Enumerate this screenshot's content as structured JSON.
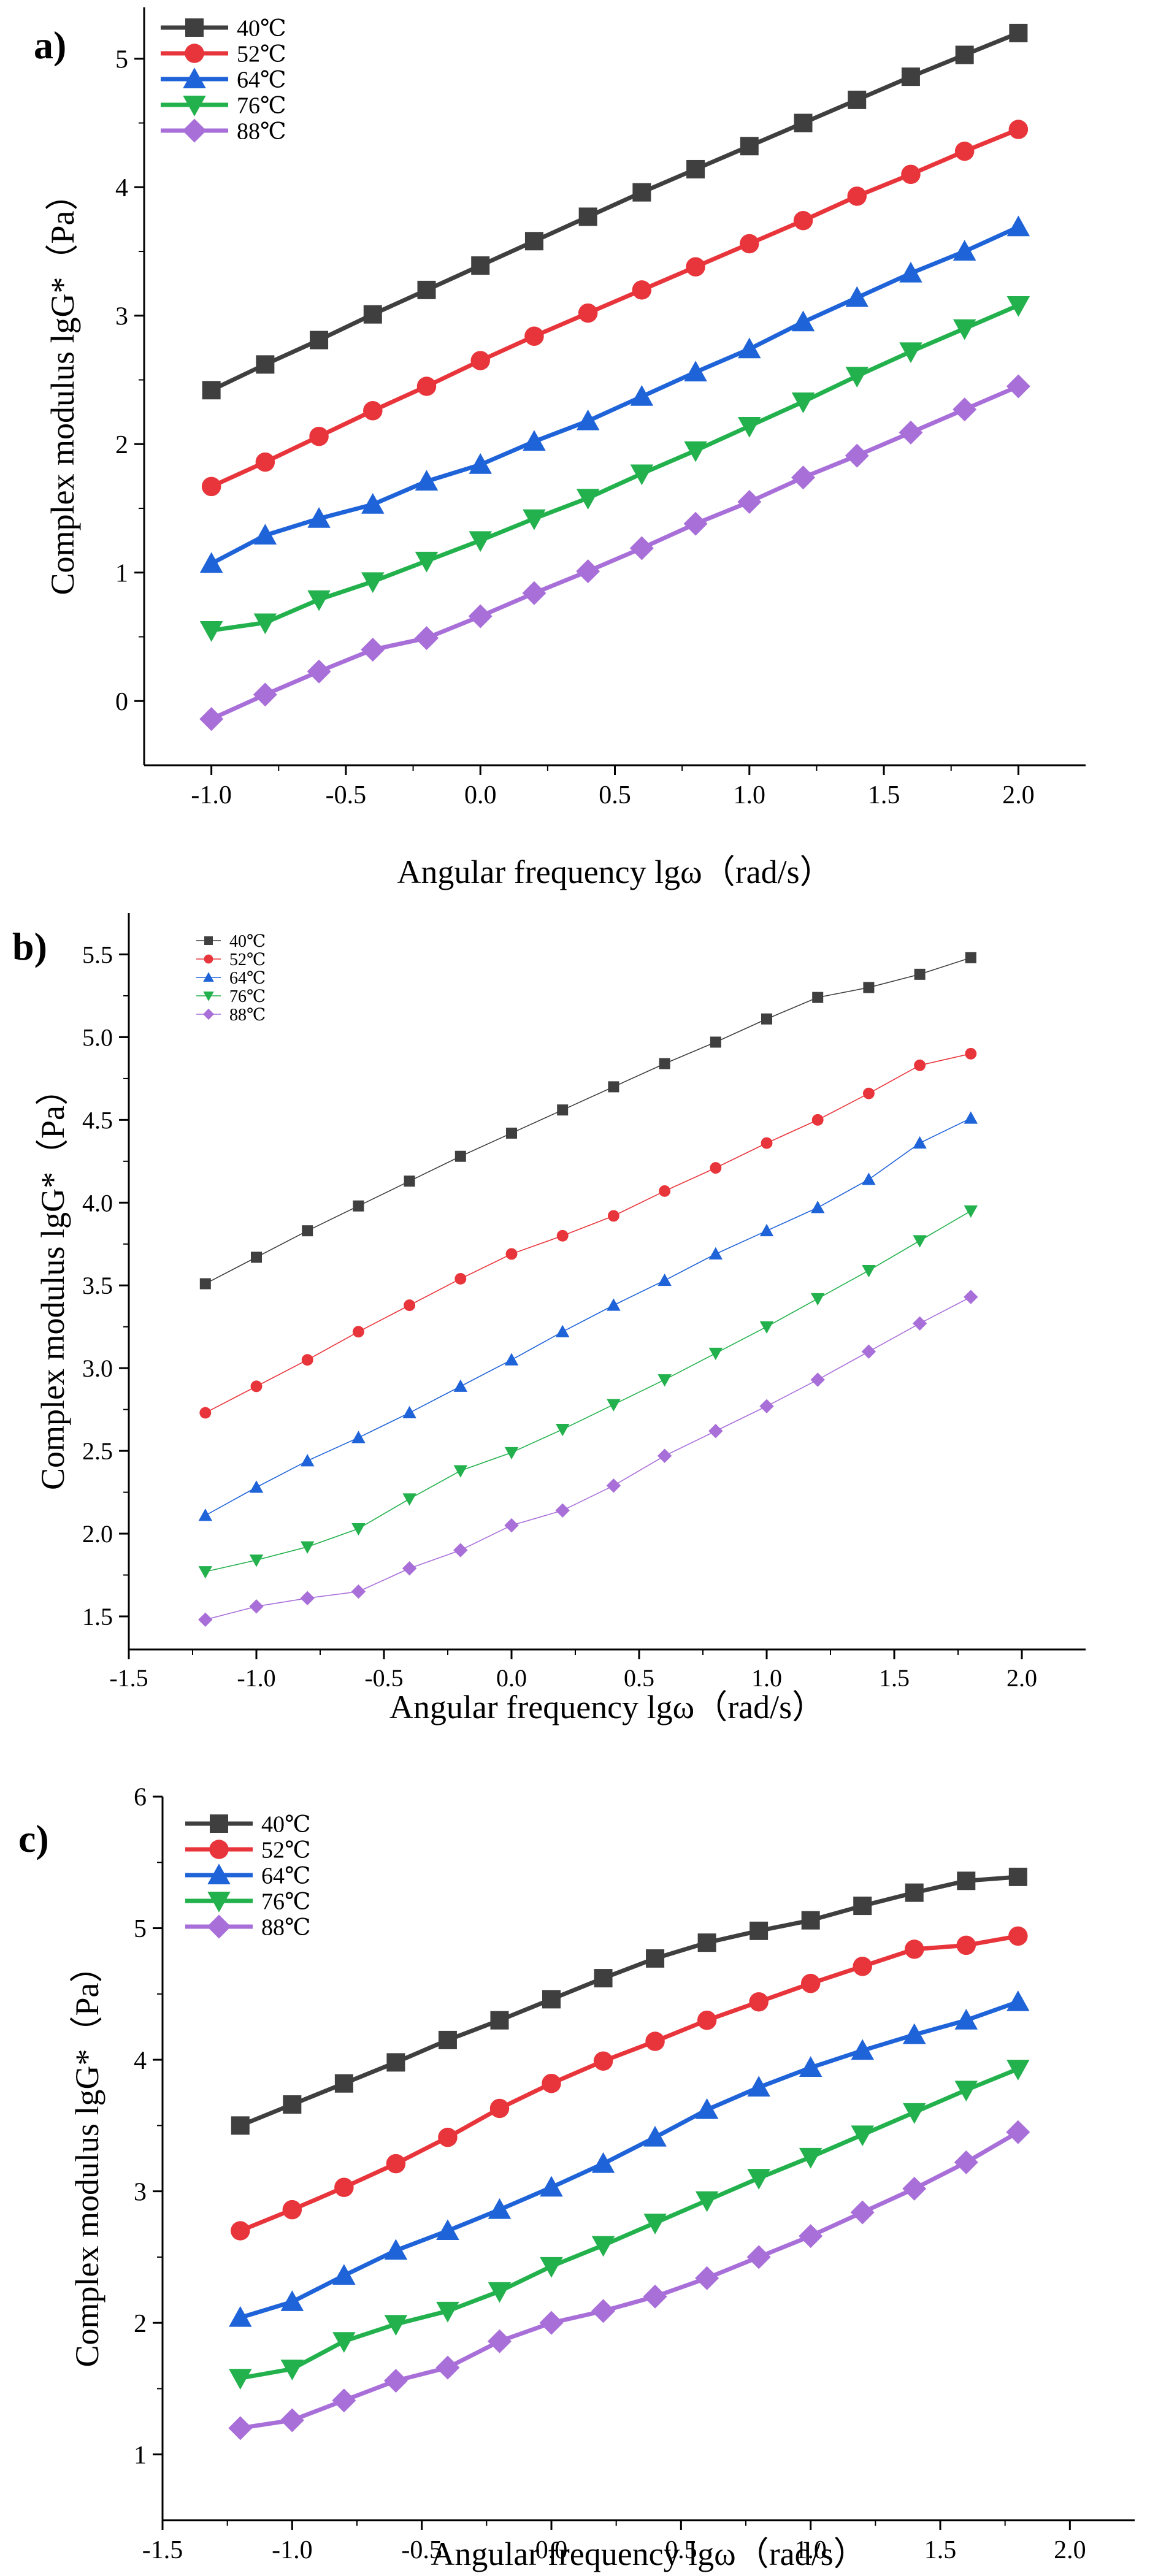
{
  "chart_data": [
    {
      "panel_label": "a)",
      "type": "line",
      "xlabel": "Angular frequency lgω（rad/s）",
      "ylabel": "Complex modulus lgG*（Pa）",
      "xlim": [
        -1.25,
        2.25
      ],
      "ylim": [
        -0.5,
        5.4
      ],
      "xticks": [
        -1.0,
        -0.5,
        0.0,
        0.5,
        1.0,
        1.5,
        2.0
      ],
      "xtick_labels": [
        "-1.0",
        "-0.5",
        "0.0",
        "0.5",
        "1.0",
        "1.5",
        "2.0"
      ],
      "yticks": [
        0,
        1,
        2,
        3,
        4,
        5
      ],
      "ytick_labels": [
        "0",
        "1",
        "2",
        "3",
        "4",
        "5"
      ],
      "legend_position": "top-left",
      "x": [
        -1.0,
        -0.8,
        -0.6,
        -0.4,
        -0.2,
        0.0,
        0.2,
        0.4,
        0.6,
        0.8,
        1.0,
        1.2,
        1.4,
        1.6,
        1.8,
        2.0
      ],
      "series": [
        {
          "name": "40℃",
          "color": "#3f3f3f",
          "marker": "square",
          "values": [
            2.42,
            2.62,
            2.81,
            3.01,
            3.2,
            3.39,
            3.58,
            3.77,
            3.96,
            4.14,
            4.32,
            4.5,
            4.68,
            4.86,
            5.03,
            5.2
          ]
        },
        {
          "name": "52℃",
          "color": "#e8353b",
          "marker": "circle",
          "values": [
            1.67,
            1.86,
            2.06,
            2.26,
            2.45,
            2.65,
            2.84,
            3.02,
            3.2,
            3.38,
            3.56,
            3.74,
            3.93,
            4.1,
            4.28,
            4.45
          ]
        },
        {
          "name": "64℃",
          "color": "#1f63d8",
          "marker": "triangle-up",
          "values": [
            1.07,
            1.29,
            1.42,
            1.53,
            1.71,
            1.84,
            2.02,
            2.18,
            2.37,
            2.56,
            2.74,
            2.95,
            3.14,
            3.33,
            3.5,
            3.69
          ]
        },
        {
          "name": "76℃",
          "color": "#22b14c",
          "marker": "triangle-down",
          "values": [
            0.55,
            0.61,
            0.79,
            0.93,
            1.09,
            1.25,
            1.42,
            1.58,
            1.77,
            1.95,
            2.14,
            2.33,
            2.53,
            2.72,
            2.9,
            3.08
          ]
        },
        {
          "name": "88℃",
          "color": "#a96fd9",
          "marker": "diamond",
          "values": [
            -0.14,
            0.05,
            0.23,
            0.4,
            0.49,
            0.66,
            0.84,
            1.01,
            1.19,
            1.38,
            1.55,
            1.74,
            1.91,
            2.09,
            2.27,
            2.45
          ]
        }
      ]
    },
    {
      "panel_label": "b)",
      "type": "line",
      "xlabel": "Angular frequency lgω（rad/s）",
      "ylabel": "Complex modulus lgG*（Pa）",
      "xlim": [
        -1.5,
        2.25
      ],
      "ylim": [
        1.3,
        5.75
      ],
      "xticks": [
        -1.5,
        -1.0,
        -0.5,
        0.0,
        0.5,
        1.0,
        1.5,
        2.0
      ],
      "xtick_labels": [
        "-1.5",
        "-1.0",
        "-0.5",
        "0.0",
        "0.5",
        "1.0",
        "1.5",
        "2.0"
      ],
      "yticks": [
        1.5,
        2.0,
        2.5,
        3.0,
        3.5,
        4.0,
        4.5,
        5.0,
        5.5
      ],
      "ytick_labels": [
        "1.5",
        "2.0",
        "2.5",
        "3.0",
        "3.5",
        "4.0",
        "4.5",
        "5.0",
        "5.5"
      ],
      "legend_position": "top-left",
      "x": [
        -1.2,
        -1.0,
        -0.8,
        -0.6,
        -0.4,
        -0.2,
        0.0,
        0.2,
        0.4,
        0.6,
        0.8,
        1.0,
        1.2,
        1.4,
        1.6,
        1.8
      ],
      "series": [
        {
          "name": "40℃",
          "color": "#3f3f3f",
          "marker": "square",
          "values": [
            3.51,
            3.67,
            3.83,
            3.98,
            4.13,
            4.28,
            4.42,
            4.56,
            4.7,
            4.84,
            4.97,
            5.11,
            5.24,
            5.3,
            5.38,
            5.48
          ]
        },
        {
          "name": "52℃",
          "color": "#e8353b",
          "marker": "circle",
          "values": [
            2.73,
            2.89,
            3.05,
            3.22,
            3.38,
            3.54,
            3.69,
            3.8,
            3.92,
            4.07,
            4.21,
            4.36,
            4.5,
            4.66,
            4.83,
            4.9
          ]
        },
        {
          "name": "64℃",
          "color": "#1f63d8",
          "marker": "triangle-up",
          "values": [
            2.11,
            2.28,
            2.44,
            2.58,
            2.73,
            2.89,
            3.05,
            3.22,
            3.38,
            3.53,
            3.69,
            3.83,
            3.97,
            4.14,
            4.36,
            4.51
          ]
        },
        {
          "name": "76℃",
          "color": "#22b14c",
          "marker": "triangle-down",
          "values": [
            1.77,
            1.84,
            1.92,
            2.03,
            2.21,
            2.38,
            2.49,
            2.63,
            2.78,
            2.93,
            3.09,
            3.25,
            3.42,
            3.59,
            3.77,
            3.95
          ]
        },
        {
          "name": "88℃",
          "color": "#a96fd9",
          "marker": "diamond",
          "values": [
            1.48,
            1.56,
            1.61,
            1.65,
            1.79,
            1.9,
            2.05,
            2.14,
            2.29,
            2.47,
            2.62,
            2.77,
            2.93,
            3.1,
            3.27,
            3.43
          ]
        }
      ]
    },
    {
      "panel_label": "c)",
      "type": "line",
      "xlabel": "Angular frequency lgω（rad/s）",
      "ylabel": "Complex modulus lgG*（Pa）",
      "xlim": [
        -1.5,
        2.25
      ],
      "ylim": [
        0.5,
        6
      ],
      "xticks": [
        -1.5,
        -1.0,
        -0.5,
        0.0,
        0.5,
        1.0,
        1.5,
        2.0
      ],
      "xtick_labels": [
        "-1.5",
        "-1.0",
        "-0.5",
        "0.0",
        "0.5",
        "1.0",
        "1.5",
        "2.0"
      ],
      "yticks": [
        1,
        2,
        3,
        4,
        5,
        6
      ],
      "ytick_labels": [
        "1",
        "2",
        "3",
        "4",
        "5",
        "6"
      ],
      "legend_position": "top-left",
      "x": [
        -1.2,
        -1.0,
        -0.8,
        -0.6,
        -0.4,
        -0.2,
        0.0,
        0.2,
        0.4,
        0.6,
        0.8,
        1.0,
        1.2,
        1.4,
        1.6,
        1.8
      ],
      "series": [
        {
          "name": "40℃",
          "color": "#3f3f3f",
          "marker": "square",
          "values": [
            3.5,
            3.66,
            3.82,
            3.98,
            4.15,
            4.3,
            4.46,
            4.62,
            4.77,
            4.89,
            4.98,
            5.06,
            5.17,
            5.27,
            5.36,
            5.39
          ]
        },
        {
          "name": "52℃",
          "color": "#e8353b",
          "marker": "circle",
          "values": [
            2.7,
            2.86,
            3.03,
            3.21,
            3.41,
            3.63,
            3.82,
            3.99,
            4.14,
            4.3,
            4.44,
            4.58,
            4.71,
            4.84,
            4.87,
            4.94
          ]
        },
        {
          "name": "64℃",
          "color": "#1f63d8",
          "marker": "triangle-up",
          "values": [
            2.04,
            2.16,
            2.36,
            2.55,
            2.7,
            2.86,
            3.03,
            3.21,
            3.41,
            3.62,
            3.79,
            3.94,
            4.07,
            4.19,
            4.3,
            4.44
          ]
        },
        {
          "name": "76℃",
          "color": "#22b14c",
          "marker": "triangle-down",
          "values": [
            1.58,
            1.65,
            1.86,
            1.99,
            2.09,
            2.24,
            2.43,
            2.59,
            2.76,
            2.93,
            3.1,
            3.26,
            3.43,
            3.6,
            3.77,
            3.93
          ]
        },
        {
          "name": "88℃",
          "color": "#a96fd9",
          "marker": "diamond",
          "values": [
            1.2,
            1.26,
            1.41,
            1.56,
            1.66,
            1.86,
            2.0,
            2.09,
            2.2,
            2.34,
            2.5,
            2.66,
            2.84,
            3.02,
            3.22,
            3.45
          ]
        }
      ]
    }
  ]
}
